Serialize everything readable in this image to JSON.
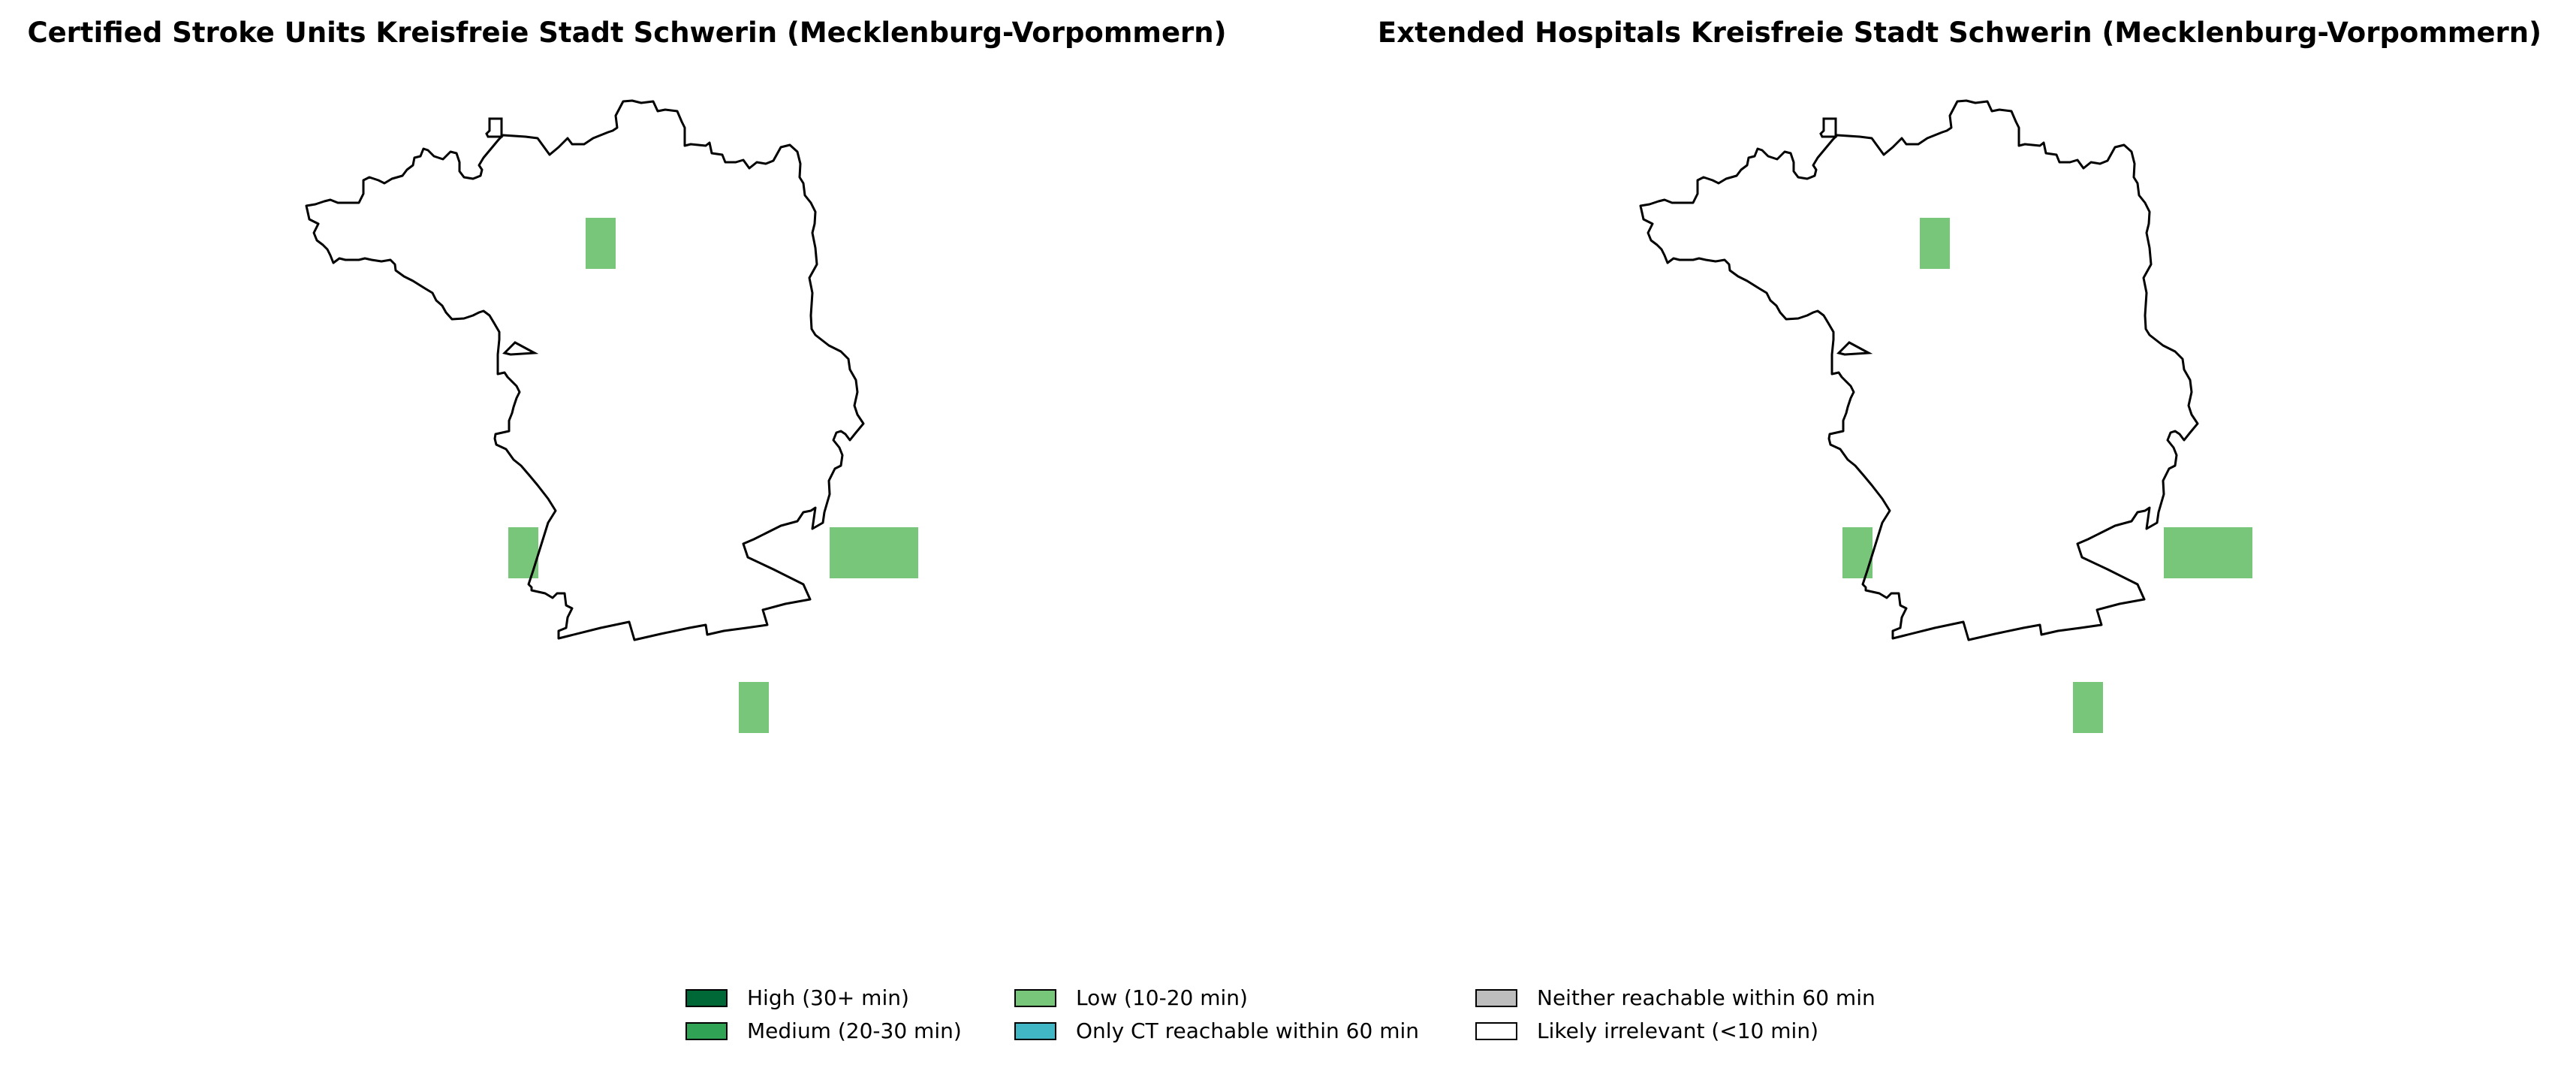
{
  "panels": [
    {
      "title": "Certified Stroke Units Kreisfreie Stadt Schwerin (Mecklenburg-Vorpommern)"
    },
    {
      "title": "Extended Hospitals Kreisfreie Stadt Schwerin (Mecklenburg-Vorpommern)"
    }
  ],
  "map_fill_category": "Low (10-20 min)",
  "legend": {
    "items": [
      {
        "label": "High (30+ min)",
        "color": "#006837"
      },
      {
        "label": "Medium (20-30 min)",
        "color": "#31a354"
      },
      {
        "label": "Low (10-20 min)",
        "color": "#78c679"
      },
      {
        "label": "Only CT reachable within 60 min",
        "color": "#41b6c4"
      },
      {
        "label": "Neither reachable within 60 min",
        "color": "#bdbdbd"
      },
      {
        "label": "Likely irrelevant (<10 min)",
        "color": "#ffffff"
      }
    ]
  }
}
